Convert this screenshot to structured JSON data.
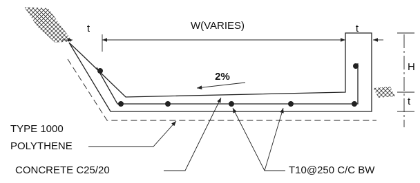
{
  "dimensions": {
    "left_thickness": "t",
    "width": "W(VARIES)",
    "right_thickness": "t",
    "height": "H",
    "base_thickness": "t"
  },
  "fall": "2%",
  "callouts": {
    "membrane": [
      "TYPE 1000",
      "POLYTHENE"
    ],
    "concrete": "CONCRETE C25/20",
    "reinforcement": "T10@250 C/C BW"
  }
}
